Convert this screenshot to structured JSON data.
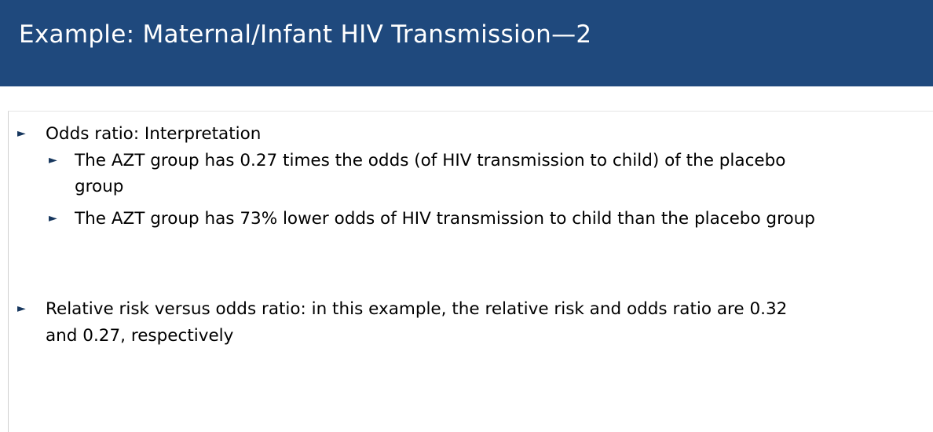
{
  "slide": {
    "title": "Example: Maternal/Infant HIV Transmission—2",
    "colors": {
      "header_background": "#1f497d",
      "header_text": "#ffffff",
      "bullet_arrow": "#17375e"
    },
    "bullet_icon": "right-triangle-arrow-icon",
    "bullets": [
      {
        "text": "Odds ratio: Interpretation",
        "sub_bullets": [
          {
            "line1": "The AZT group has 0.27 times the odds (of HIV transmission to child) of the placebo",
            "line2": "group"
          },
          {
            "line1": "The AZT group has 73% lower odds of HIV transmission to child than the placebo group"
          }
        ]
      },
      {
        "line1": "Relative risk versus odds ratio: in this example, the relative risk and odds ratio are 0.32",
        "line2": "and 0.27, respectively"
      }
    ]
  }
}
